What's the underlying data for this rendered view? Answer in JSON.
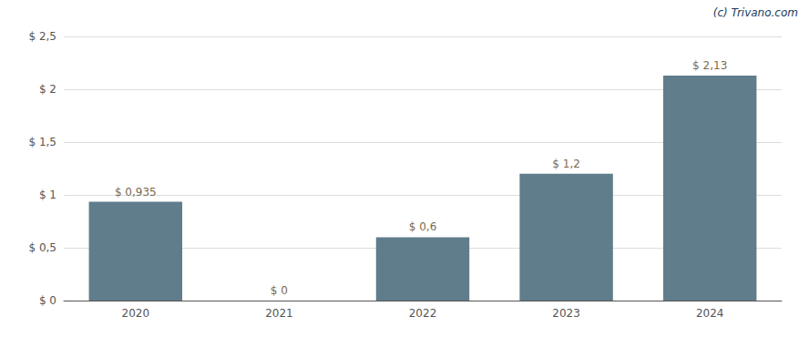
{
  "chart_data": {
    "type": "bar",
    "categories": [
      "2020",
      "2021",
      "2022",
      "2023",
      "2024"
    ],
    "values": [
      0.935,
      0.0,
      0.6,
      1.2,
      2.13
    ],
    "value_labels": [
      "$ 0,935",
      "$ 0",
      "$ 0,6",
      "$ 1,2",
      "$ 2,13"
    ],
    "data_labels": true,
    "color": "#607d8b",
    "ylim": [
      0,
      2.5
    ],
    "yticks": [
      {
        "value": 0,
        "label": "$ 0"
      },
      {
        "value": 0.5,
        "label": "$ 0,5"
      },
      {
        "value": 1.0,
        "label": "$ 1"
      },
      {
        "value": 1.5,
        "label": "$ 1,5"
      },
      {
        "value": 2.0,
        "label": "$ 2"
      },
      {
        "value": 2.5,
        "label": "$ 2,5"
      }
    ],
    "grid": true,
    "annotation": "(c) Trivano.com"
  }
}
